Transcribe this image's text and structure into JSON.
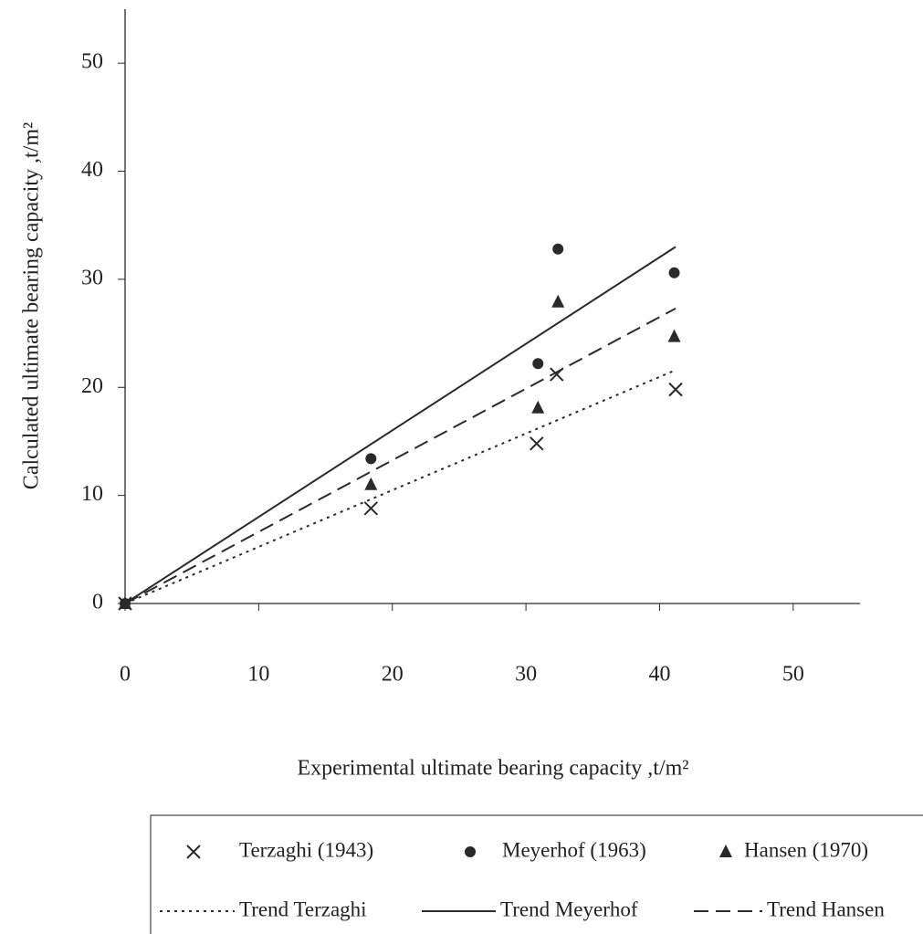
{
  "chart_data": {
    "type": "scatter",
    "x_label": "Experimental ultimate bearing capacity ,t/m²",
    "y_label": "Calculated ultimate bearing capacity ,t/m²",
    "xlim": [
      0,
      55
    ],
    "ylim": [
      0,
      55
    ],
    "xticks": [
      0,
      10,
      20,
      30,
      40,
      50
    ],
    "yticks": [
      0,
      10,
      20,
      30,
      40,
      50
    ],
    "color": "#2a2a2a",
    "series": [
      {
        "name": "Terzaghi (1943)",
        "kind": "points",
        "marker": "x",
        "x": [
          0,
          18.4,
          30.8,
          32.3,
          41.2
        ],
        "values": [
          0,
          8.8,
          14.8,
          21.2,
          19.8
        ]
      },
      {
        "name": "Meyerhof (1963)",
        "kind": "points",
        "marker": "circle",
        "x": [
          0,
          18.4,
          30.9,
          32.4,
          41.1
        ],
        "values": [
          0,
          13.4,
          22.2,
          32.8,
          30.6
        ]
      },
      {
        "name": "Hansen (1970)",
        "kind": "points",
        "marker": "triangle",
        "x": [
          0,
          18.4,
          30.9,
          32.4,
          41.1
        ],
        "values": [
          0,
          11.0,
          18.1,
          27.9,
          24.7
        ]
      },
      {
        "name": "Trend Terzaghi",
        "kind": "line",
        "dash": "dotted",
        "x": [
          0,
          41.2
        ],
        "values": [
          0,
          21.6
        ]
      },
      {
        "name": "Trend Meyerhof",
        "kind": "line",
        "dash": "solid",
        "x": [
          0,
          41.2
        ],
        "values": [
          0,
          33.0
        ]
      },
      {
        "name": "Trend Hansen",
        "kind": "line",
        "dash": "dashed",
        "x": [
          0,
          41.2
        ],
        "values": [
          0,
          27.3
        ]
      }
    ]
  }
}
